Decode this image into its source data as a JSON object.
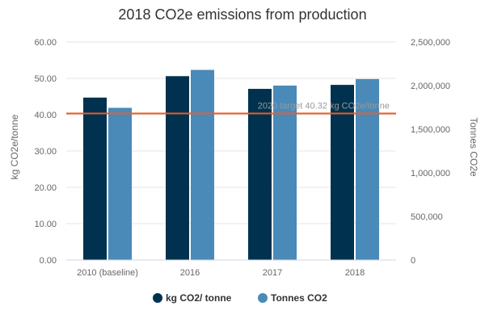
{
  "chart_data": {
    "type": "bar",
    "title": "2018 CO2e emissions from production",
    "categories": [
      "2010 (baseline)",
      "2016",
      "2017",
      "2018"
    ],
    "series": [
      {
        "name": "kg CO2/ tonne",
        "values": [
          44.7,
          50.6,
          47.1,
          48.2
        ],
        "axis": "left",
        "color": "#00324f"
      },
      {
        "name": "Tonnes CO2",
        "values": [
          1745000,
          2180000,
          2000000,
          2075000
        ],
        "axis": "right",
        "color": "#4a8ab8"
      }
    ],
    "y_left": {
      "label": "kg CO2e/tonne",
      "min": 0,
      "max": 60,
      "ticks": [
        "0.00",
        "10.00",
        "20.00",
        "30.00",
        "40.00",
        "50.00",
        "60.00"
      ]
    },
    "y_right": {
      "label": "Tonnes CO2e",
      "min": 0,
      "max": 2500000,
      "ticks": [
        "0",
        "500,000",
        "1,000,000",
        "1,500,000",
        "2,000,000",
        "2,500,000"
      ]
    },
    "target_line": {
      "value": 40.32,
      "label": "2020 target 40.32 kg CO2e/tonne",
      "color": "#f15a22"
    },
    "grid": "horizontal",
    "legend_position": "bottom-center"
  }
}
